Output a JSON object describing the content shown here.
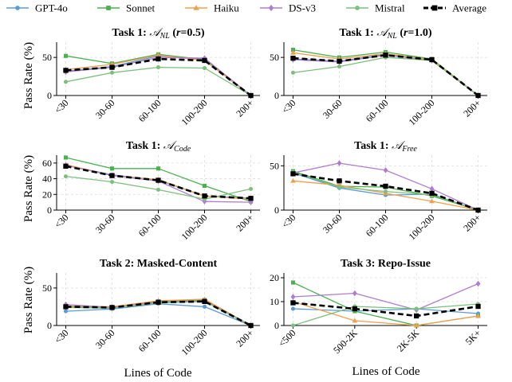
{
  "legend": [
    {
      "name": "GPT-4o",
      "color": "#5b9bd5",
      "marker": "circle",
      "style": "solid"
    },
    {
      "name": "Sonnet",
      "color": "#4caf50",
      "marker": "square",
      "style": "solid"
    },
    {
      "name": "Haiku",
      "color": "#f0a04b",
      "marker": "triangle",
      "style": "solid"
    },
    {
      "name": "DS-v3",
      "color": "#b07cd0",
      "marker": "diamond",
      "style": "solid"
    },
    {
      "name": "Mistral",
      "color": "#7cbf7c",
      "marker": "circle",
      "style": "solid"
    },
    {
      "name": "Average",
      "color": "#000000",
      "marker": "square",
      "style": "dashed"
    }
  ],
  "shared_xlabel": "Lines of Code",
  "shared_ylabel": "Pass Rate (%)",
  "chart_data": [
    {
      "type": "line",
      "title": "Task 1: 𝓐_NL (r=0.5)",
      "title_parts": [
        "Task 1: ",
        "𝒜",
        "NL",
        " (",
        "r",
        "=0.5)"
      ],
      "categories": [
        "<30",
        "30-60",
        "60-100",
        "100-200",
        "200+"
      ],
      "ylim": [
        0,
        70
      ],
      "yticks": [
        0,
        50
      ],
      "grid": true,
      "series": [
        {
          "name": "GPT-4o",
          "values": [
            32,
            38,
            52,
            48,
            0
          ]
        },
        {
          "name": "Sonnet",
          "values": [
            52,
            42,
            54,
            47,
            0
          ]
        },
        {
          "name": "Haiku",
          "values": [
            34,
            41,
            53,
            46,
            0
          ]
        },
        {
          "name": "DS-v3",
          "values": [
            31,
            37,
            50,
            49,
            0
          ]
        },
        {
          "name": "Mistral",
          "values": [
            18,
            30,
            37,
            36,
            0
          ]
        },
        {
          "name": "Average",
          "values": [
            33,
            37,
            48,
            46,
            0
          ]
        }
      ]
    },
    {
      "type": "line",
      "title": "Task 1: 𝓐_NL (r=1.0)",
      "title_parts": [
        "Task 1: ",
        "𝒜",
        "NL",
        " (",
        "r",
        "=1.0)"
      ],
      "categories": [
        "<30",
        "30-60",
        "60-100",
        "100-200",
        "200+"
      ],
      "ylim": [
        0,
        70
      ],
      "yticks": [
        0,
        50
      ],
      "grid": true,
      "series": [
        {
          "name": "GPT-4o",
          "values": [
            48,
            45,
            54,
            47,
            0
          ]
        },
        {
          "name": "Sonnet",
          "values": [
            60,
            50,
            57,
            48,
            0
          ]
        },
        {
          "name": "Haiku",
          "values": [
            56,
            48,
            55,
            47,
            0
          ]
        },
        {
          "name": "DS-v3",
          "values": [
            47,
            44,
            53,
            46,
            0
          ]
        },
        {
          "name": "Mistral",
          "values": [
            30,
            38,
            50,
            46,
            0
          ]
        },
        {
          "name": "Average",
          "values": [
            49,
            45,
            53,
            47,
            0
          ]
        }
      ]
    },
    {
      "type": "line",
      "title": "Task 1: 𝓐_Code",
      "title_parts": [
        "Task 1: ",
        "𝒜",
        "Code",
        "",
        "",
        ""
      ],
      "categories": [
        "<30",
        "30-60",
        "60-100",
        "100-200",
        "200+"
      ],
      "ylim": [
        0,
        70
      ],
      "yticks": [
        0,
        20,
        40,
        60
      ],
      "grid": true,
      "series": [
        {
          "name": "GPT-4o",
          "values": [
            57,
            45,
            38,
            18,
            15
          ]
        },
        {
          "name": "Sonnet",
          "values": [
            67,
            53,
            53,
            31,
            11
          ]
        },
        {
          "name": "Haiku",
          "values": [
            58,
            44,
            39,
            18,
            14
          ]
        },
        {
          "name": "DS-v3",
          "values": [
            57,
            44,
            37,
            11,
            10
          ]
        },
        {
          "name": "Mistral",
          "values": [
            43,
            36,
            26,
            14,
            27
          ]
        },
        {
          "name": "Average",
          "values": [
            56,
            44,
            38,
            18,
            15
          ]
        }
      ]
    },
    {
      "type": "line",
      "title": "Task 1: 𝓐_Free",
      "title_parts": [
        "Task 1: ",
        "𝒜",
        "Free",
        "",
        "",
        ""
      ],
      "categories": [
        "<30",
        "30-60",
        "60-100",
        "100-200",
        "200+"
      ],
      "ylim": [
        0,
        62
      ],
      "yticks": [
        0,
        50
      ],
      "grid": true,
      "series": [
        {
          "name": "GPT-4o",
          "values": [
            42,
            25,
            17,
            18,
            0
          ]
        },
        {
          "name": "Sonnet",
          "values": [
            44,
            27,
            26,
            16,
            0
          ]
        },
        {
          "name": "Haiku",
          "values": [
            33,
            28,
            19,
            10,
            0
          ]
        },
        {
          "name": "DS-v3",
          "values": [
            42,
            53,
            45,
            24,
            0
          ]
        },
        {
          "name": "Mistral",
          "values": [
            43,
            26,
            21,
            17,
            0
          ]
        },
        {
          "name": "Average",
          "values": [
            41,
            33,
            27,
            19,
            0
          ]
        }
      ]
    },
    {
      "type": "line",
      "title": "Task 2: Masked-Content",
      "title_parts": [
        "Task 2: Masked-Content",
        "",
        "",
        "",
        "",
        ""
      ],
      "categories": [
        "<30",
        "30-60",
        "60-100",
        "100-200",
        "200+"
      ],
      "ylim": [
        0,
        70
      ],
      "yticks": [
        0,
        50
      ],
      "grid": true,
      "series": [
        {
          "name": "GPT-4o",
          "values": [
            19,
            22,
            29,
            25,
            0
          ]
        },
        {
          "name": "Sonnet",
          "values": [
            25,
            24,
            32,
            34,
            0
          ]
        },
        {
          "name": "Haiku",
          "values": [
            26,
            25,
            33,
            35,
            0
          ]
        },
        {
          "name": "DS-v3",
          "values": [
            28,
            24,
            31,
            33,
            0
          ]
        },
        {
          "name": "Mistral",
          "values": [
            24,
            23,
            30,
            32,
            0
          ]
        },
        {
          "name": "Average",
          "values": [
            25,
            24,
            31,
            32,
            0
          ]
        }
      ]
    },
    {
      "type": "line",
      "title": "Task 3: Repo-Issue",
      "title_parts": [
        "Task 3: Repo-Issue",
        "",
        "",
        "",
        "",
        ""
      ],
      "categories": [
        "<500",
        "500-2K",
        "2K-5K",
        "5K+"
      ],
      "ylim": [
        0,
        22
      ],
      "yticks": [
        0,
        10,
        20
      ],
      "grid": true,
      "series": [
        {
          "name": "GPT-4o",
          "values": [
            7,
            6,
            7,
            5
          ]
        },
        {
          "name": "Sonnet",
          "values": [
            18,
            6,
            0,
            4
          ]
        },
        {
          "name": "Haiku",
          "values": [
            10,
            2,
            0,
            4
          ]
        },
        {
          "name": "DS-v3",
          "values": [
            12,
            13.5,
            6.5,
            17.5
          ]
        },
        {
          "name": "Mistral",
          "values": [
            0,
            8,
            7,
            9
          ]
        },
        {
          "name": "Average",
          "values": [
            9.5,
            7,
            4,
            8
          ]
        }
      ]
    }
  ]
}
